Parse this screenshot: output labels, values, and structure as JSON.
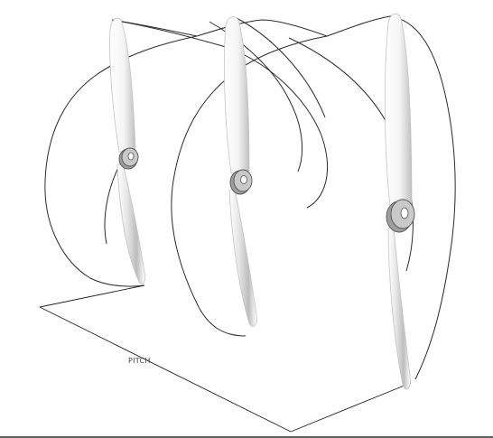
{
  "labels": {
    "pitch": "PITCH"
  },
  "colors": {
    "line": "#2a2a2a",
    "blade_light": "#ffffff",
    "blade_shadow": "#cfcfcf",
    "hub": "#c9c9c9"
  },
  "icons": [
    "propeller-icon",
    "helix-path"
  ],
  "propeller_count": 3
}
